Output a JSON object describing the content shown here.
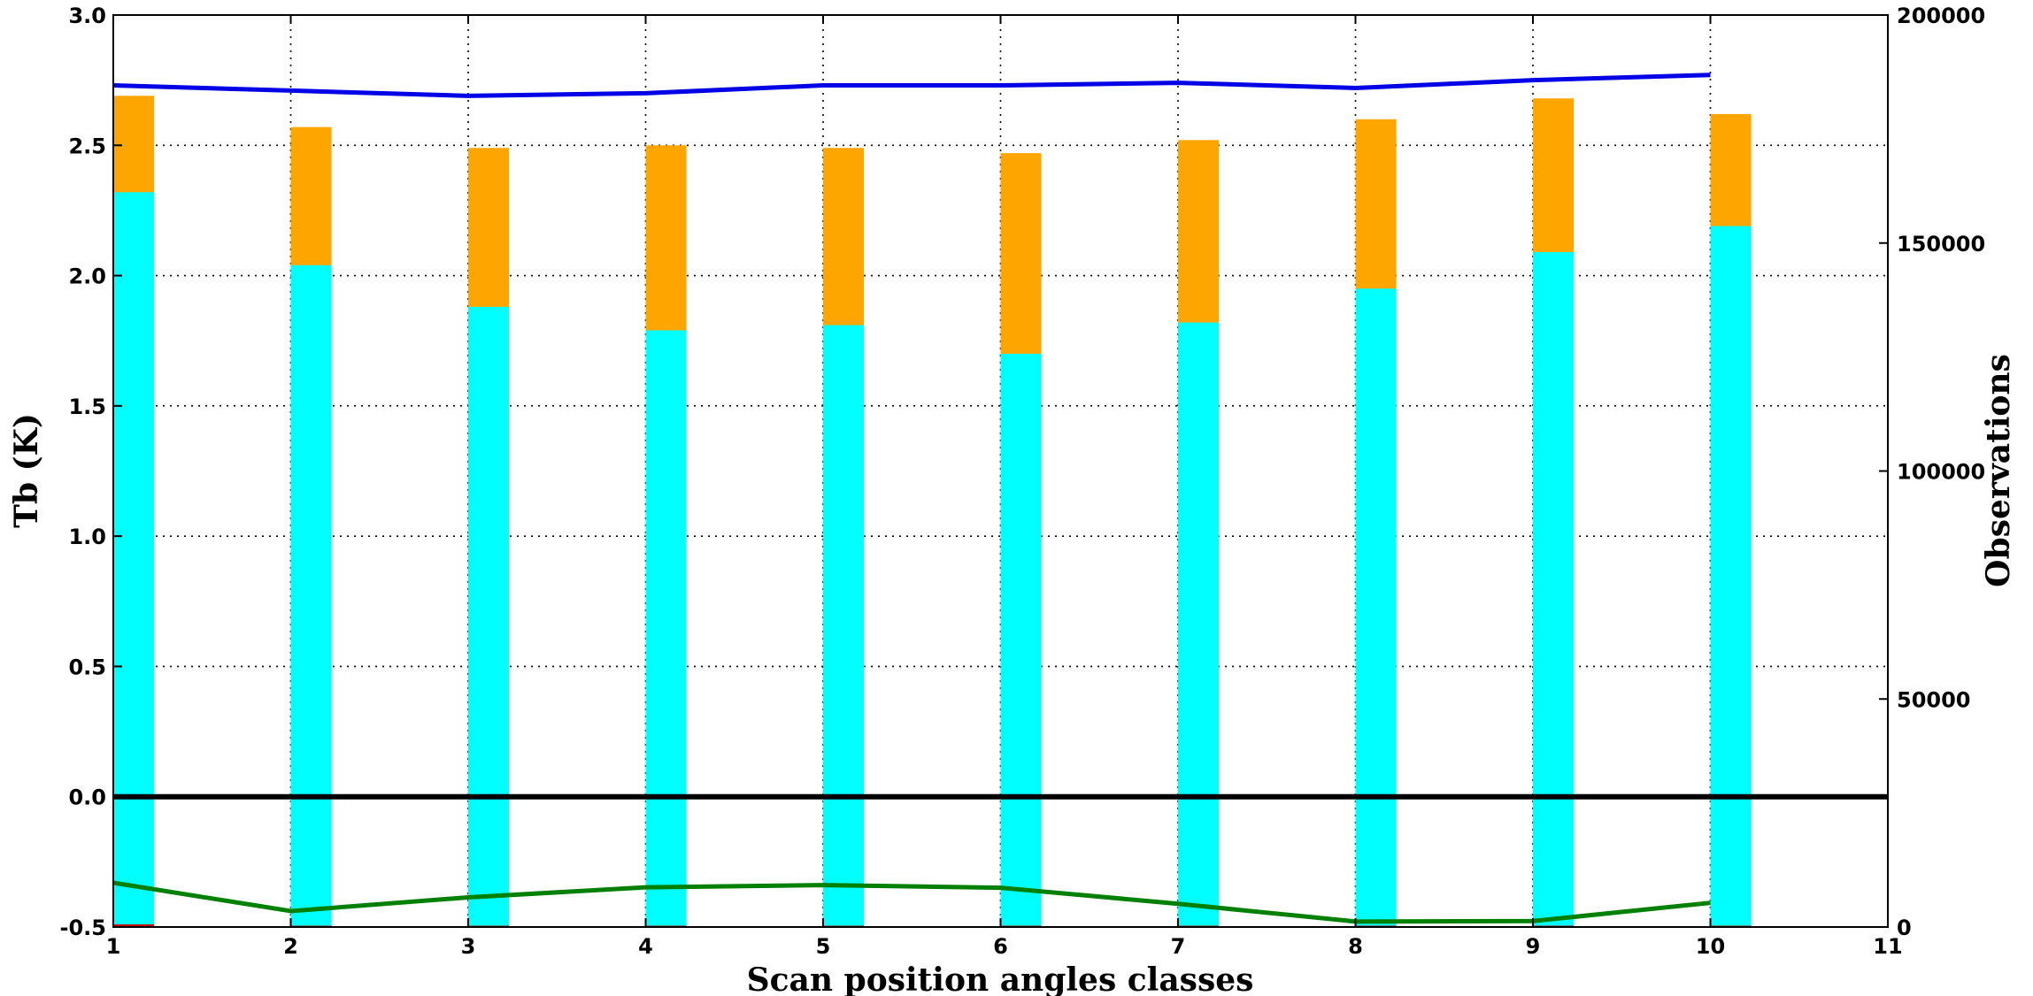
{
  "chart_data": {
    "type": "bar",
    "x_label": "Scan position angles classes",
    "y_left_label": "Tb (K)",
    "y_right_label": "Observations",
    "x_range": [
      1,
      11
    ],
    "y_left_range": [
      -0.5,
      3.0
    ],
    "y_right_range": [
      0,
      200000
    ],
    "x_ticks": [
      "1",
      "2",
      "3",
      "4",
      "5",
      "6",
      "7",
      "8",
      "9",
      "10",
      "11"
    ],
    "y_left_ticks": [
      "-0.5",
      "0.0",
      "0.5",
      "1.0",
      "1.5",
      "2.0",
      "2.5",
      "3.0"
    ],
    "y_right_ticks": [
      "0",
      "50000",
      "100000",
      "150000",
      "200000"
    ],
    "grid": true,
    "bar_width_classes": 0.23,
    "categories": [
      1,
      2,
      3,
      4,
      5,
      6,
      7,
      8,
      9,
      10
    ],
    "bars_orange": [
      2.69,
      2.57,
      2.49,
      2.5,
      2.49,
      2.47,
      2.52,
      2.6,
      2.68,
      2.62
    ],
    "bars_cyan": [
      2.32,
      2.04,
      1.88,
      1.79,
      1.81,
      1.7,
      1.82,
      1.95,
      2.09,
      2.19
    ],
    "bars_red": [
      -0.49,
      -0.495,
      -0.495,
      -0.495,
      -0.495,
      -0.495,
      -0.495,
      -0.495,
      -0.495,
      -0.495
    ],
    "zero_line": 0.0,
    "line_blue_left": [
      2.73,
      2.71,
      2.69,
      2.7,
      2.73,
      2.73,
      2.74,
      2.72,
      2.75,
      2.77
    ],
    "line_green_right": [
      9700,
      3500,
      6500,
      8700,
      9200,
      8600,
      5100,
      1200,
      1300,
      5300
    ],
    "colors": {
      "orange": "#FFA500",
      "cyan": "#00FFFF",
      "red": "#CC0000",
      "blue": "#0000E6",
      "green": "#008000",
      "zero": "#000000"
    }
  }
}
